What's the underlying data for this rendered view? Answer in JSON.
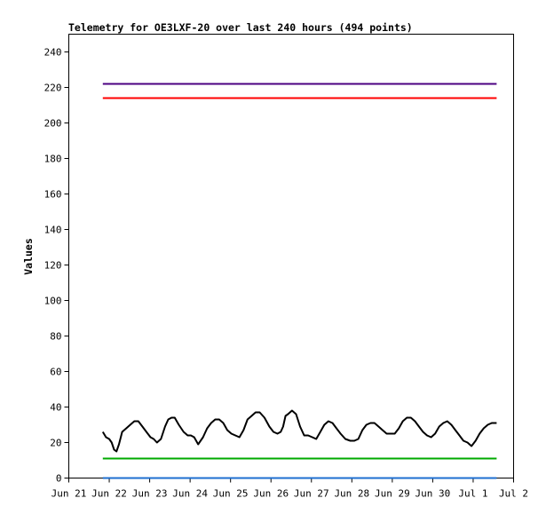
{
  "chart_data": {
    "type": "line",
    "title": "Telemetry for OE3LXF-20 over last 240 hours (494 points)",
    "xlabel": "",
    "ylabel": "Values",
    "ylim": [
      0,
      250
    ],
    "yticks": [
      0,
      20,
      40,
      60,
      80,
      100,
      120,
      140,
      160,
      180,
      200,
      220,
      240
    ],
    "xlim": [
      0,
      11
    ],
    "xticks": [
      {
        "x": 0,
        "label": "Jun 21"
      },
      {
        "x": 1,
        "label": "Jun 22"
      },
      {
        "x": 2,
        "label": "Jun 23"
      },
      {
        "x": 3,
        "label": "Jun 24"
      },
      {
        "x": 4,
        "label": "Jun 25"
      },
      {
        "x": 5,
        "label": "Jun 26"
      },
      {
        "x": 6,
        "label": "Jun 27"
      },
      {
        "x": 7,
        "label": "Jun 28"
      },
      {
        "x": 8,
        "label": "Jun 29"
      },
      {
        "x": 9,
        "label": "Jun 30"
      },
      {
        "x": 10,
        "label": "Jul 1"
      },
      {
        "x": 11,
        "label": "Jul 2"
      }
    ],
    "grid": false,
    "legend": "none",
    "series": [
      {
        "color": "#4b0082",
        "x": [
          0.84,
          10.58
        ],
        "values": [
          222,
          222
        ]
      },
      {
        "color": "#ff0000",
        "x": [
          0.84,
          10.58
        ],
        "values": [
          214,
          214
        ]
      },
      {
        "color": "#00aa00",
        "x": [
          0.84,
          10.58
        ],
        "values": [
          11,
          11
        ]
      },
      {
        "color": "#1e6fd0",
        "x": [
          0.84,
          10.58
        ],
        "values": [
          0,
          0
        ]
      },
      {
        "color": "#000000",
        "x": [
          0.84,
          0.92,
          1.0,
          1.06,
          1.12,
          1.18,
          1.24,
          1.32,
          1.42,
          1.52,
          1.62,
          1.72,
          1.82,
          1.92,
          2.02,
          2.1,
          2.18,
          2.28,
          2.38,
          2.46,
          2.54,
          2.62,
          2.72,
          2.84,
          2.94,
          3.02,
          3.1,
          3.2,
          3.32,
          3.42,
          3.52,
          3.62,
          3.72,
          3.82,
          3.92,
          4.02,
          4.12,
          4.22,
          4.32,
          4.42,
          4.52,
          4.62,
          4.72,
          4.84,
          4.96,
          5.06,
          5.16,
          5.24,
          5.3,
          5.36,
          5.42,
          5.52,
          5.62,
          5.72,
          5.82,
          5.92,
          6.02,
          6.12,
          6.22,
          6.32,
          6.42,
          6.52,
          6.62,
          6.72,
          6.84,
          6.96,
          7.06,
          7.16,
          7.26,
          7.36,
          7.46,
          7.56,
          7.66,
          7.76,
          7.86,
          7.96,
          8.06,
          8.16,
          8.26,
          8.36,
          8.46,
          8.56,
          8.66,
          8.76,
          8.86,
          8.96,
          9.06,
          9.16,
          9.26,
          9.36,
          9.46,
          9.56,
          9.66,
          9.76,
          9.86,
          9.96,
          10.06,
          10.16,
          10.26,
          10.36,
          10.46,
          10.58
        ],
        "values": [
          26,
          23,
          22,
          20,
          16,
          15,
          19,
          26,
          28,
          30,
          32,
          32,
          29,
          26,
          23,
          22,
          20,
          22,
          29,
          33,
          34,
          34,
          30,
          26,
          24,
          24,
          23,
          19,
          23,
          28,
          31,
          33,
          33,
          31,
          27,
          25,
          24,
          23,
          27,
          33,
          35,
          37,
          37,
          34,
          29,
          26,
          25,
          26,
          29,
          35,
          36,
          38,
          36,
          29,
          24,
          24,
          23,
          22,
          26,
          30,
          32,
          31,
          28,
          25,
          22,
          21,
          21,
          22,
          27,
          30,
          31,
          31,
          29,
          27,
          25,
          25,
          25,
          28,
          32,
          34,
          34,
          32,
          29,
          26,
          24,
          23,
          25,
          29,
          31,
          32,
          30,
          27,
          24,
          21,
          20,
          18,
          21,
          25,
          28,
          30,
          31,
          31
        ]
      }
    ]
  }
}
